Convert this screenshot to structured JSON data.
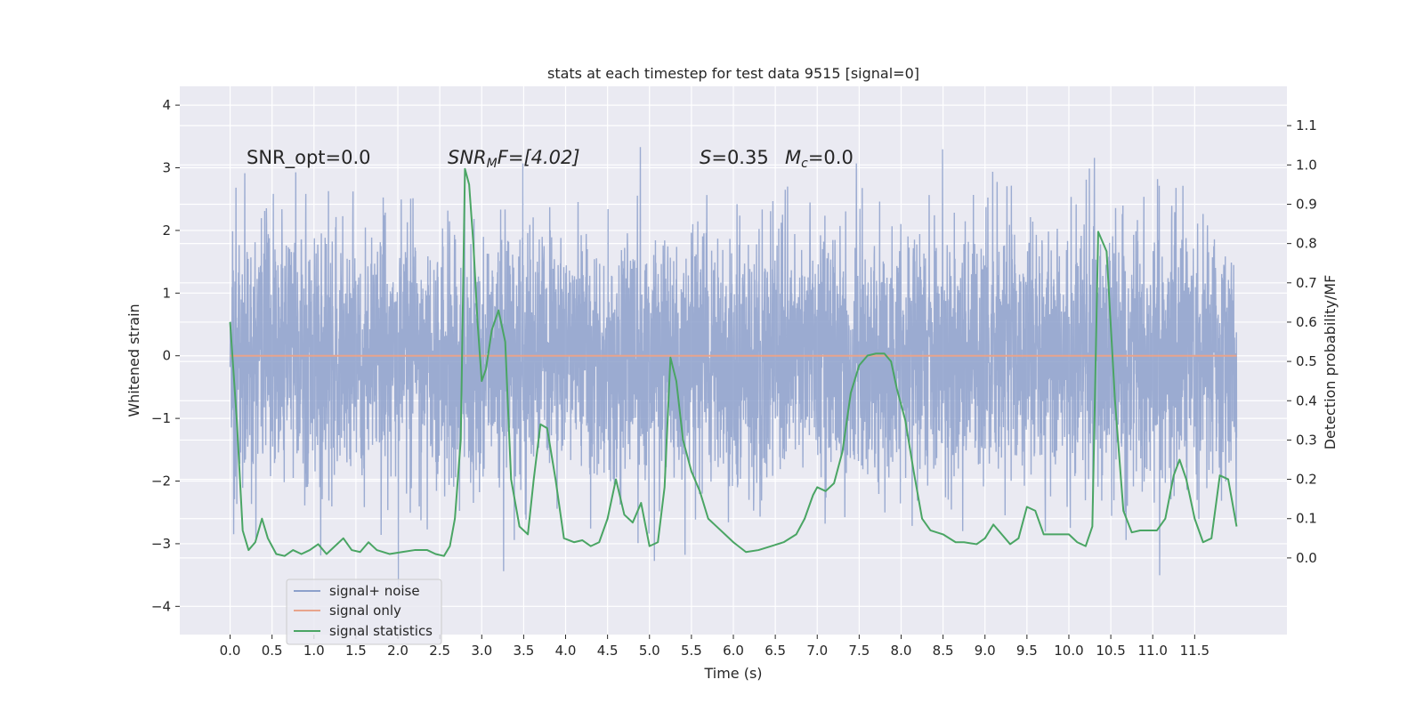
{
  "chart_data": {
    "type": "line",
    "title": "stats at each timestep for test data 9515 [signal=0]",
    "xlabel": "Time (s)",
    "ylabel_left": "Whitened strain",
    "ylabel_right": "Detection probability/MF",
    "xlim": [
      -0.6,
      12.6
    ],
    "ylim_left": [
      -4.45,
      4.3
    ],
    "ylim_right": [
      -0.195,
      1.2
    ],
    "x_ticks": [
      0.0,
      0.5,
      1.0,
      1.5,
      2.0,
      2.5,
      3.0,
      3.5,
      4.0,
      4.5,
      5.0,
      5.5,
      6.0,
      6.5,
      7.0,
      7.5,
      8.0,
      8.5,
      9.0,
      9.5,
      10.0,
      10.5,
      11.0,
      11.5
    ],
    "x_tick_labels": [
      "0.0",
      "0.5",
      "1.0",
      "1.5",
      "2.0",
      "2.5",
      "3.0",
      "3.5",
      "4.0",
      "4.5",
      "5.0",
      "5.5",
      "6.0",
      "6.5",
      "7.0",
      "7.5",
      "8.0",
      "8.5",
      "9.0",
      "9.5",
      "10.0",
      "10.5",
      "11.0",
      "11.5"
    ],
    "y_left_ticks": [
      -4,
      -3,
      -2,
      -1,
      0,
      1,
      2,
      3,
      4
    ],
    "y_left_tick_labels": [
      "−4",
      "−3",
      "−2",
      "−1",
      "0",
      "1",
      "2",
      "3",
      "4"
    ],
    "y_right_ticks": [
      0.0,
      0.1,
      0.2,
      0.3,
      0.4,
      0.5,
      0.6,
      0.7,
      0.8,
      0.9,
      1.0,
      1.1
    ],
    "y_right_tick_labels": [
      "0.0",
      "0.1",
      "0.2",
      "0.3",
      "0.4",
      "0.5",
      "0.6",
      "0.7",
      "0.8",
      "0.9",
      "1.0",
      "1.1"
    ],
    "grid": true,
    "legend_position": "lower-left",
    "annotations": {
      "snr_opt": "SNR_opt=0.0",
      "snr_mf_main": "SNR",
      "snr_mf_sub": "M",
      "snr_mf_rest": "F=[4.02]",
      "s_main": "S",
      "s_rest": "=0.35",
      "mc_main": "M",
      "mc_sub": "c",
      "mc_rest": "=0.0"
    },
    "series": [
      {
        "name": "signal+ noise",
        "color": "#8da0cb",
        "axis": "left",
        "x_range": [
          0.0,
          12.0
        ],
        "description_values": "dense noise, envelope approx +/-2.5 with peaks to +/-3.9"
      },
      {
        "name": "signal only",
        "color": "#e8a48c",
        "axis": "left",
        "x": [
          0.0,
          12.0
        ],
        "y": [
          0.0,
          0.0
        ]
      },
      {
        "name": "signal statistics",
        "color": "#4aa564",
        "axis": "right",
        "x": [
          0.0,
          0.08,
          0.15,
          0.22,
          0.3,
          0.38,
          0.45,
          0.55,
          0.65,
          0.75,
          0.85,
          0.95,
          1.05,
          1.15,
          1.25,
          1.35,
          1.45,
          1.55,
          1.65,
          1.75,
          1.9,
          2.05,
          2.2,
          2.35,
          2.45,
          2.55,
          2.62,
          2.68,
          2.75,
          2.8,
          2.85,
          2.9,
          2.95,
          3.0,
          3.05,
          3.12,
          3.2,
          3.28,
          3.35,
          3.45,
          3.55,
          3.62,
          3.7,
          3.78,
          3.88,
          3.98,
          4.1,
          4.2,
          4.3,
          4.4,
          4.5,
          4.6,
          4.7,
          4.8,
          4.9,
          5.0,
          5.1,
          5.18,
          5.25,
          5.32,
          5.4,
          5.5,
          5.6,
          5.7,
          5.8,
          5.9,
          6.0,
          6.15,
          6.3,
          6.45,
          6.6,
          6.75,
          6.85,
          6.95,
          7.0,
          7.1,
          7.2,
          7.3,
          7.4,
          7.5,
          7.6,
          7.7,
          7.8,
          7.88,
          7.95,
          8.05,
          8.15,
          8.25,
          8.35,
          8.5,
          8.65,
          8.75,
          8.9,
          9.0,
          9.1,
          9.2,
          9.3,
          9.4,
          9.5,
          9.6,
          9.7,
          9.85,
          10.0,
          10.1,
          10.2,
          10.28,
          10.35,
          10.45,
          10.55,
          10.65,
          10.75,
          10.85,
          10.95,
          11.05,
          11.15,
          11.25,
          11.32,
          11.4,
          11.5,
          11.6,
          11.7,
          11.8,
          11.9,
          12.0
        ],
        "y": [
          0.6,
          0.35,
          0.07,
          0.02,
          0.04,
          0.1,
          0.05,
          0.01,
          0.005,
          0.02,
          0.01,
          0.02,
          0.035,
          0.01,
          0.03,
          0.05,
          0.02,
          0.015,
          0.04,
          0.02,
          0.01,
          0.015,
          0.02,
          0.02,
          0.01,
          0.005,
          0.03,
          0.1,
          0.3,
          0.99,
          0.95,
          0.8,
          0.6,
          0.45,
          0.48,
          0.58,
          0.63,
          0.55,
          0.2,
          0.08,
          0.06,
          0.2,
          0.34,
          0.33,
          0.2,
          0.05,
          0.04,
          0.045,
          0.03,
          0.04,
          0.1,
          0.2,
          0.11,
          0.09,
          0.14,
          0.03,
          0.04,
          0.18,
          0.51,
          0.45,
          0.3,
          0.22,
          0.17,
          0.1,
          0.08,
          0.06,
          0.04,
          0.015,
          0.02,
          0.03,
          0.04,
          0.06,
          0.1,
          0.16,
          0.18,
          0.17,
          0.19,
          0.27,
          0.42,
          0.49,
          0.515,
          0.52,
          0.52,
          0.5,
          0.43,
          0.35,
          0.22,
          0.1,
          0.07,
          0.06,
          0.04,
          0.04,
          0.035,
          0.05,
          0.085,
          0.06,
          0.035,
          0.05,
          0.13,
          0.12,
          0.06,
          0.06,
          0.06,
          0.04,
          0.03,
          0.08,
          0.83,
          0.78,
          0.4,
          0.12,
          0.065,
          0.07,
          0.07,
          0.07,
          0.1,
          0.21,
          0.25,
          0.2,
          0.1,
          0.04,
          0.05,
          0.21,
          0.2,
          0.08
        ]
      }
    ]
  }
}
